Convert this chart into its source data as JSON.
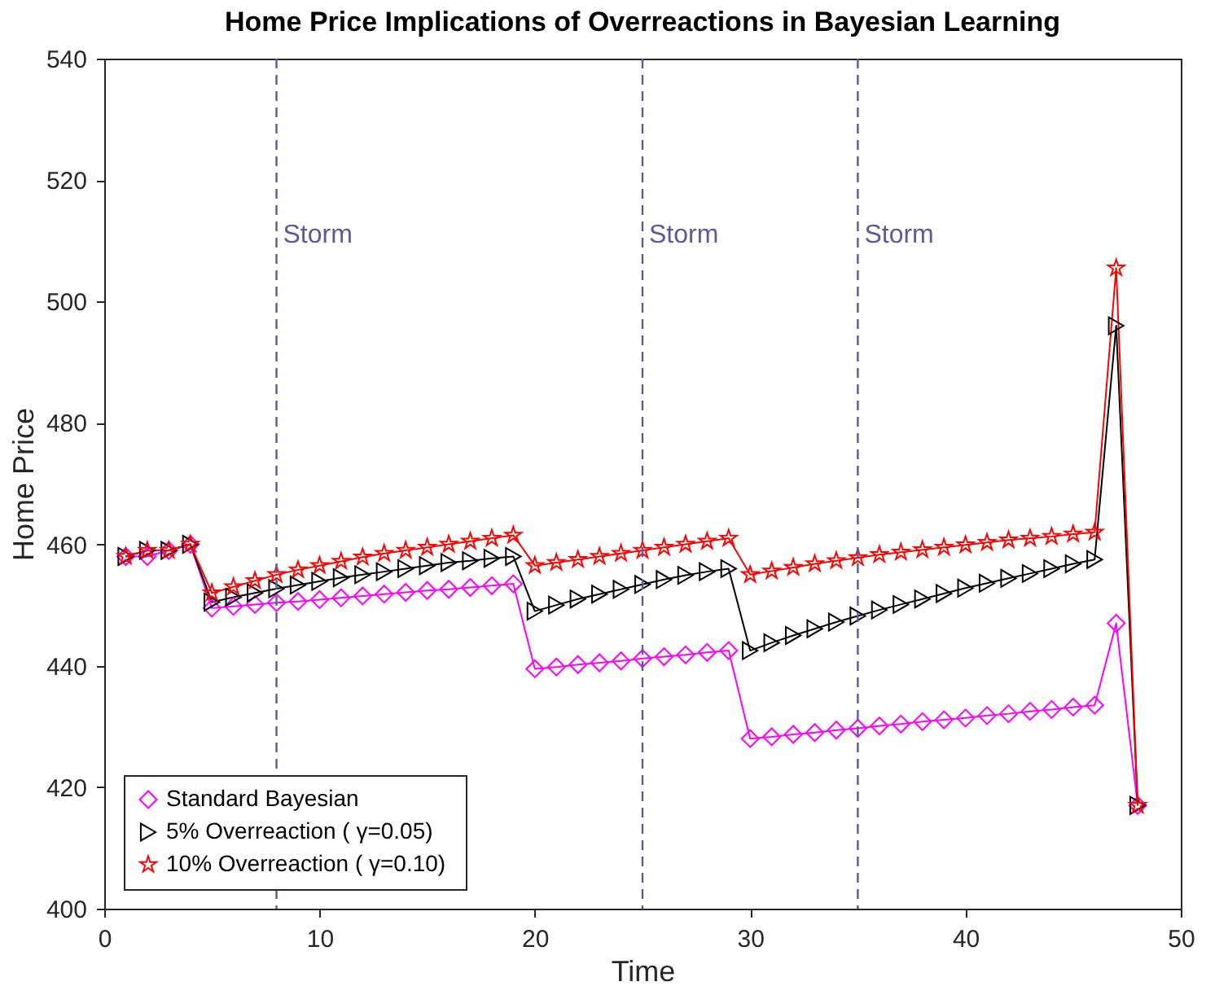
{
  "chart_data": {
    "type": "line",
    "title": "Home Price Implications of Overreactions in Bayesian Learning",
    "xlabel": "Time",
    "ylabel": "Home Price",
    "x": [
      1,
      2,
      3,
      4,
      5,
      6,
      7,
      8,
      9,
      10,
      11,
      12,
      13,
      14,
      15,
      16,
      17,
      18,
      19,
      20,
      21,
      22,
      23,
      24,
      25,
      26,
      27,
      28,
      29,
      30,
      31,
      32,
      33,
      34,
      35,
      36,
      37,
      38,
      39,
      40,
      41,
      42,
      43,
      44,
      45,
      46,
      47,
      48
    ],
    "series": [
      {
        "name": "Standard Bayesian",
        "color": "#ff00ff",
        "marker": "diamond",
        "values": [
          458,
          458,
          459,
          460,
          449.5,
          449.8,
          450.1,
          450.4,
          450.6,
          450.9,
          451.2,
          451.5,
          451.8,
          452.1,
          452.4,
          452.6,
          452.9,
          453.2,
          453.5,
          439.5,
          439.8,
          440.2,
          440.5,
          440.8,
          441.2,
          441.5,
          441.8,
          442.2,
          442.5,
          428,
          428.3,
          428.7,
          429,
          429.4,
          429.7,
          430.1,
          430.4,
          430.8,
          431.1,
          431.4,
          431.8,
          432.1,
          432.5,
          432.8,
          433.2,
          433.5,
          447,
          417
        ]
      },
      {
        "name": "5% Overreaction (  γ=0.05)",
        "color": "#000000",
        "marker": "triangle",
        "values": [
          458,
          459,
          459,
          460,
          450.5,
          451.3,
          452,
          452.7,
          453.3,
          453.9,
          454.5,
          455,
          455.5,
          456,
          456.5,
          457,
          457.3,
          457.7,
          458,
          449,
          450,
          451,
          451.8,
          452.6,
          453.4,
          454.2,
          454.9,
          455.5,
          456,
          442.5,
          443.8,
          445,
          446.1,
          447.2,
          448.2,
          449.2,
          450.1,
          451,
          451.9,
          452.8,
          453.6,
          454.4,
          455.2,
          456,
          456.8,
          457.5,
          496,
          417
        ]
      },
      {
        "name": "10% Overreaction (  γ=0.10)",
        "color": "#ff0000",
        "marker": "star",
        "values": [
          458,
          459,
          459,
          460,
          452,
          453,
          454,
          455,
          455.8,
          456.5,
          457.2,
          457.9,
          458.5,
          459,
          459.5,
          460,
          460.5,
          461,
          461.5,
          456.5,
          457,
          457.5,
          458,
          458.5,
          459,
          459.5,
          460,
          460.5,
          461,
          455,
          455.6,
          456.2,
          456.8,
          457.3,
          457.8,
          458.3,
          458.7,
          459.1,
          459.5,
          459.9,
          460.3,
          460.7,
          461,
          461.3,
          461.7,
          462,
          505.5,
          417
        ]
      }
    ],
    "xlim": [
      0,
      50
    ],
    "xticks": [
      0,
      10,
      20,
      30,
      40,
      50
    ],
    "ylim": [
      400,
      540
    ],
    "yticks": [
      400,
      420,
      440,
      460,
      480,
      500,
      520,
      540
    ],
    "ref_lines": [
      {
        "axis": "x",
        "value": 8,
        "label": "Storm",
        "color": "#5b5b9b",
        "line_style": "dashed"
      },
      {
        "axis": "x",
        "value": 25,
        "label": "Storm",
        "color": "#5b5b9b",
        "line_style": "dashed"
      },
      {
        "axis": "x",
        "value": 35,
        "label": "Storm",
        "color": "#5b5b9b",
        "line_style": "dashed"
      }
    ],
    "grid": false,
    "legend": "bottom left",
    "line_style": "solid"
  }
}
